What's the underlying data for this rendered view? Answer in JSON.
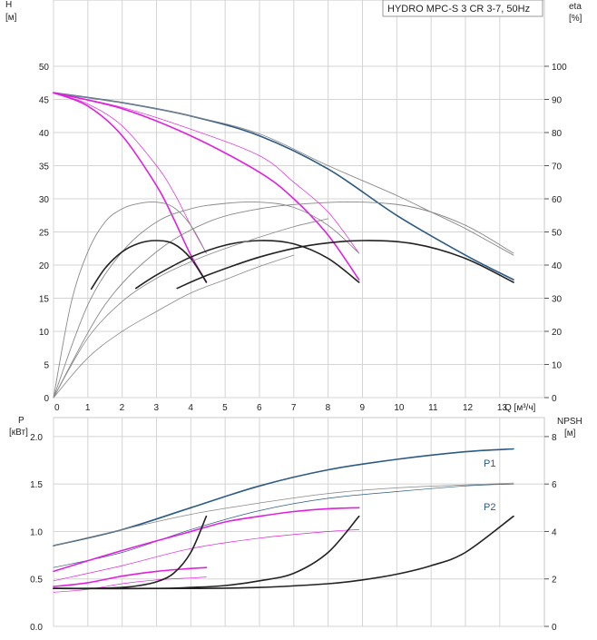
{
  "chart_data": [
    {
      "type": "line",
      "title": "HYDRO MPC-S 3 CR 3-7, 50Hz",
      "left_axis_label": [
        "H",
        "[м]"
      ],
      "right_axis_label": [
        "eta",
        "[%]"
      ],
      "x_axis_label": "Q [м³/ч]",
      "x_ticks": [
        0,
        1,
        2,
        3,
        4,
        5,
        6,
        7,
        8,
        9,
        10,
        11,
        12,
        13
      ],
      "y_ticks": [
        0,
        5,
        10,
        15,
        20,
        25,
        30,
        35,
        40,
        45,
        50
      ],
      "eta_ticks": [
        0,
        10,
        20,
        30,
        40,
        50,
        60,
        70,
        80,
        90,
        100
      ],
      "xlim": [
        0,
        14.3
      ],
      "ylim": [
        0,
        60
      ],
      "grid": true,
      "series": [
        {
          "role": "head_max",
          "color": "#2b5a85",
          "width": 1.6,
          "points": [
            [
              0,
              46
            ],
            [
              2,
              44.5
            ],
            [
              4,
              42.5
            ],
            [
              6,
              39.5
            ],
            [
              8,
              34.5
            ],
            [
              10,
              27.5
            ],
            [
              12,
              21.5
            ],
            [
              13.4,
              17.8
            ]
          ]
        },
        {
          "role": "head_max_thin",
          "color": "#888888",
          "width": 0.9,
          "points": [
            [
              0,
              46
            ],
            [
              2,
              44.5
            ],
            [
              4,
              42.5
            ],
            [
              6,
              39.8
            ],
            [
              8,
              35
            ],
            [
              10,
              30.5
            ],
            [
              11,
              28
            ],
            [
              12,
              25.5
            ],
            [
              13.4,
              21.5
            ]
          ]
        },
        {
          "role": "head_2_pumps",
          "color": "#e020e0",
          "width": 1.6,
          "points": [
            [
              0,
              46
            ],
            [
              2,
              43.6
            ],
            [
              4,
              39.5
            ],
            [
              6,
              34
            ],
            [
              7,
              30
            ],
            [
              8,
              24.5
            ],
            [
              8.9,
              17.8
            ]
          ]
        },
        {
          "role": "head_2_pumps_thin",
          "color": "#e020e0",
          "width": 0.7,
          "points": [
            [
              0,
              46
            ],
            [
              2,
              43.8
            ],
            [
              4,
              40.5
            ],
            [
              6,
              36.5
            ],
            [
              7,
              32.5
            ],
            [
              8,
              28
            ],
            [
              8.9,
              21.8
            ]
          ]
        },
        {
          "role": "head_1_pump",
          "color": "#e020e0",
          "width": 1.6,
          "points": [
            [
              0,
              46
            ],
            [
              1,
              44
            ],
            [
              2,
              39.5
            ],
            [
              3,
              32
            ],
            [
              3.5,
              27
            ],
            [
              4,
              21.5
            ],
            [
              4.45,
              17.5
            ]
          ]
        },
        {
          "role": "head_1_pump_thin",
          "color": "#e020e0",
          "width": 0.7,
          "points": [
            [
              0,
              46
            ],
            [
              1,
              44.3
            ],
            [
              2,
              41
            ],
            [
              3,
              35
            ],
            [
              3.5,
              31
            ],
            [
              4,
              26
            ],
            [
              4.45,
              21.8
            ]
          ]
        },
        {
          "role": "eta_1_pump",
          "color": "#888888",
          "width": 0.9,
          "points": [
            [
              0,
              0
            ],
            [
              0.5,
              14
            ],
            [
              1,
              22
            ],
            [
              1.5,
              26.5
            ],
            [
              2,
              28.5
            ],
            [
              2.5,
              29.3
            ],
            [
              3,
              29.5
            ],
            [
              3.5,
              28.7
            ],
            [
              4,
              26
            ],
            [
              4.45,
              21.8
            ]
          ]
        },
        {
          "role": "eta_2_pumps",
          "color": "#888888",
          "width": 0.9,
          "points": [
            [
              0,
              0
            ],
            [
              1,
              14
            ],
            [
              2,
              22
            ],
            [
              3,
              26.5
            ],
            [
              4,
              28.5
            ],
            [
              5,
              29.3
            ],
            [
              6,
              29.5
            ],
            [
              7,
              28.7
            ],
            [
              8,
              26
            ],
            [
              8.9,
              21.8
            ]
          ]
        },
        {
          "role": "eta_3_pumps",
          "color": "#888888",
          "width": 0.9,
          "points": [
            [
              0,
              0
            ],
            [
              1.5,
              14
            ],
            [
              3,
              22
            ],
            [
              4.5,
              26.5
            ],
            [
              6,
              28.5
            ],
            [
              7.5,
              29.3
            ],
            [
              9,
              29.5
            ],
            [
              10.5,
              28.7
            ],
            [
              12,
              26
            ],
            [
              13.4,
              21.8
            ]
          ]
        },
        {
          "role": "eta_1_pump_bold",
          "color": "#222222",
          "width": 1.6,
          "points": [
            [
              1.1,
              16.4
            ],
            [
              1.5,
              19.5
            ],
            [
              2,
              22
            ],
            [
              2.5,
              23.3
            ],
            [
              3,
              23.7
            ],
            [
              3.5,
              23.2
            ],
            [
              4,
              21
            ],
            [
              4.45,
              17.4
            ]
          ]
        },
        {
          "role": "eta_2_pumps_bold",
          "color": "#222222",
          "width": 1.6,
          "points": [
            [
              2.4,
              16.5
            ],
            [
              3,
              18.5
            ],
            [
              4,
              21.2
            ],
            [
              5,
              23
            ],
            [
              6,
              23.7
            ],
            [
              7,
              23.2
            ],
            [
              8,
              21
            ],
            [
              8.9,
              17.4
            ]
          ]
        },
        {
          "role": "eta_3_pumps_bold",
          "color": "#222222",
          "width": 1.6,
          "points": [
            [
              3.6,
              16.5
            ],
            [
              4.5,
              18.5
            ],
            [
              6,
              21.2
            ],
            [
              7.5,
              23
            ],
            [
              9,
              23.7
            ],
            [
              10.5,
              23.2
            ],
            [
              12,
              21
            ],
            [
              13.4,
              17.4
            ]
          ]
        },
        {
          "role": "eta_thin_1",
          "color": "#888888",
          "width": 0.8,
          "points": [
            [
              0,
              0
            ],
            [
              1,
              6
            ],
            [
              2,
              10
            ],
            [
              3,
              13
            ],
            [
              4,
              15.8
            ],
            [
              5,
              17.8
            ],
            [
              6,
              19.8
            ],
            [
              7,
              21.5
            ]
          ]
        },
        {
          "role": "eta_thin_2",
          "color": "#888888",
          "width": 0.8,
          "points": [
            [
              0,
              0
            ],
            [
              1,
              9
            ],
            [
              2,
              14.5
            ],
            [
              3,
              18
            ],
            [
              4,
              20.5
            ],
            [
              5,
              22.5
            ],
            [
              6,
              24.2
            ],
            [
              7,
              25.8
            ],
            [
              8,
              27
            ]
          ]
        }
      ]
    },
    {
      "type": "line",
      "left_axis_label": [
        "P",
        "[кВт]"
      ],
      "right_axis_label": [
        "NPSH",
        "[м]"
      ],
      "y_ticks": [
        "0.0",
        "0.5",
        "1.0",
        "1.5",
        "2.0"
      ],
      "npsh_ticks": [
        0,
        2,
        4,
        6,
        8
      ],
      "xlim": [
        0,
        14.3
      ],
      "ylim": [
        0,
        2.2
      ],
      "grid": true,
      "series": [
        {
          "name": "P1",
          "color": "#2b5a85",
          "width": 1.6,
          "points": [
            [
              0,
              0.85
            ],
            [
              2,
              1.02
            ],
            [
              4,
              1.25
            ],
            [
              6,
              1.48
            ],
            [
              8,
              1.65
            ],
            [
              10,
              1.76
            ],
            [
              12,
              1.84
            ],
            [
              13.4,
              1.87
            ]
          ]
        },
        {
          "name": "P2",
          "color": "#2b5a85",
          "width": 0.7,
          "points": [
            [
              0,
              0.62
            ],
            [
              2,
              0.78
            ],
            [
              4,
              1.02
            ],
            [
              6,
              1.22
            ],
            [
              8,
              1.35
            ],
            [
              10,
              1.42
            ],
            [
              12,
              1.48
            ],
            [
              13.4,
              1.5
            ]
          ]
        },
        {
          "role": "p_grey",
          "color": "#888888",
          "width": 0.8,
          "points": [
            [
              0,
              0.85
            ],
            [
              2,
              1.02
            ],
            [
              4,
              1.18
            ],
            [
              6,
              1.3
            ],
            [
              8,
              1.4
            ],
            [
              10,
              1.46
            ],
            [
              12,
              1.49
            ],
            [
              13.4,
              1.51
            ]
          ]
        },
        {
          "role": "p1_2_pumps",
          "color": "#e020e0",
          "width": 1.6,
          "points": [
            [
              0,
              0.58
            ],
            [
              2,
              0.8
            ],
            [
              4,
              1.0
            ],
            [
              5,
              1.1
            ],
            [
              6,
              1.16
            ],
            [
              7,
              1.21
            ],
            [
              8,
              1.24
            ],
            [
              8.9,
              1.25
            ]
          ]
        },
        {
          "role": "p2_2_pumps",
          "color": "#e020e0",
          "width": 0.7,
          "points": [
            [
              0,
              0.48
            ],
            [
              2,
              0.64
            ],
            [
              4,
              0.82
            ],
            [
              6,
              0.93
            ],
            [
              8,
              1.0
            ],
            [
              8.9,
              1.02
            ]
          ]
        },
        {
          "role": "p1_1_pump",
          "color": "#e020e0",
          "width": 1.6,
          "points": [
            [
              0,
              0.42
            ],
            [
              1,
              0.46
            ],
            [
              2,
              0.53
            ],
            [
              3,
              0.58
            ],
            [
              4,
              0.61
            ],
            [
              4.45,
              0.62
            ]
          ]
        },
        {
          "role": "p2_1_pump",
          "color": "#e020e0",
          "width": 0.7,
          "points": [
            [
              0,
              0.36
            ],
            [
              1,
              0.39
            ],
            [
              2,
              0.45
            ],
            [
              3,
              0.49
            ],
            [
              4,
              0.51
            ],
            [
              4.45,
              0.52
            ]
          ]
        },
        {
          "role": "npsh_1_pump",
          "color": "#222222",
          "width": 1.6,
          "points": [
            [
              0,
              0.4
            ],
            [
              1,
              0.4
            ],
            [
              2,
              0.41
            ],
            [
              2.5,
              0.43
            ],
            [
              3,
              0.47
            ],
            [
              3.5,
              0.56
            ],
            [
              4,
              0.78
            ],
            [
              4.45,
              1.16
            ]
          ]
        },
        {
          "role": "npsh_2_pumps",
          "color": "#222222",
          "width": 1.6,
          "points": [
            [
              0,
              0.4
            ],
            [
              3,
              0.4
            ],
            [
              4,
              0.41
            ],
            [
              5,
              0.43
            ],
            [
              6,
              0.48
            ],
            [
              7,
              0.56
            ],
            [
              8,
              0.78
            ],
            [
              8.9,
              1.16
            ]
          ]
        },
        {
          "role": "npsh_3_pumps",
          "color": "#222222",
          "width": 1.6,
          "points": [
            [
              0,
              0.4
            ],
            [
              4,
              0.4
            ],
            [
              6,
              0.41
            ],
            [
              8,
              0.45
            ],
            [
              9,
              0.49
            ],
            [
              10,
              0.55
            ],
            [
              11,
              0.64
            ],
            [
              12,
              0.78
            ],
            [
              13.4,
              1.16
            ]
          ]
        }
      ]
    }
  ]
}
